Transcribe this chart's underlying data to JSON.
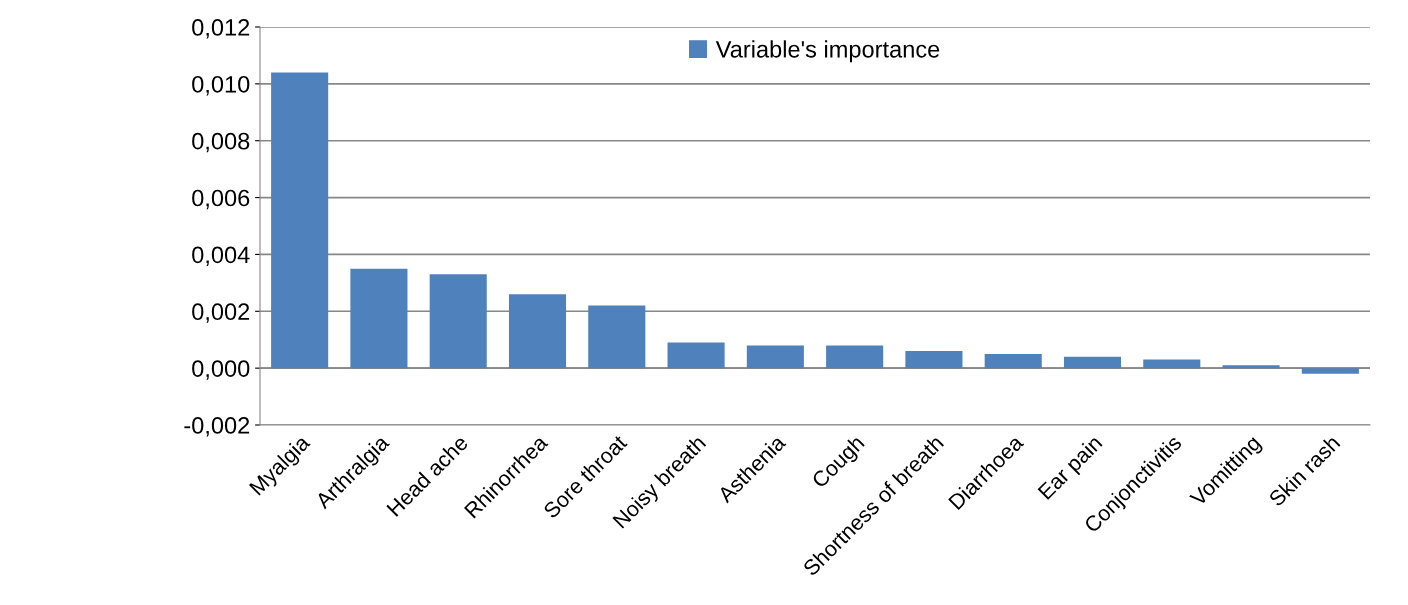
{
  "chart_data": {
    "type": "bar",
    "categories": [
      "Myalgia",
      "Arthralgia",
      "Head ache",
      "Rhinorrhea",
      "Sore throat",
      "Noisy breath",
      "Asthenia",
      "Cough",
      "Shortness of breath",
      "Diarrhoea",
      "Ear pain",
      "Conjonctivitis",
      "Vomitting",
      "Skin rash"
    ],
    "series": [
      {
        "name": "Variable's importance",
        "color": "#4f81bd",
        "values": [
          0.0104,
          0.0035,
          0.0033,
          0.0026,
          0.0022,
          0.0009,
          0.0008,
          0.0008,
          0.0006,
          0.0005,
          0.0004,
          0.0003,
          0.0001,
          -0.0002
        ]
      }
    ],
    "ylim": [
      -0.002,
      0.012
    ],
    "yticks": [
      {
        "value": -0.002,
        "label": "-0,002"
      },
      {
        "value": 0,
        "label": "0,000"
      },
      {
        "value": 0.002,
        "label": "0,002"
      },
      {
        "value": 0.004,
        "label": "0,004"
      },
      {
        "value": 0.006,
        "label": "0,006"
      },
      {
        "value": 0.008,
        "label": "0,008"
      },
      {
        "value": 0.01,
        "label": "0,010"
      },
      {
        "value": 0.012,
        "label": "0,012"
      }
    ],
    "grid": "y",
    "legend": "top"
  }
}
